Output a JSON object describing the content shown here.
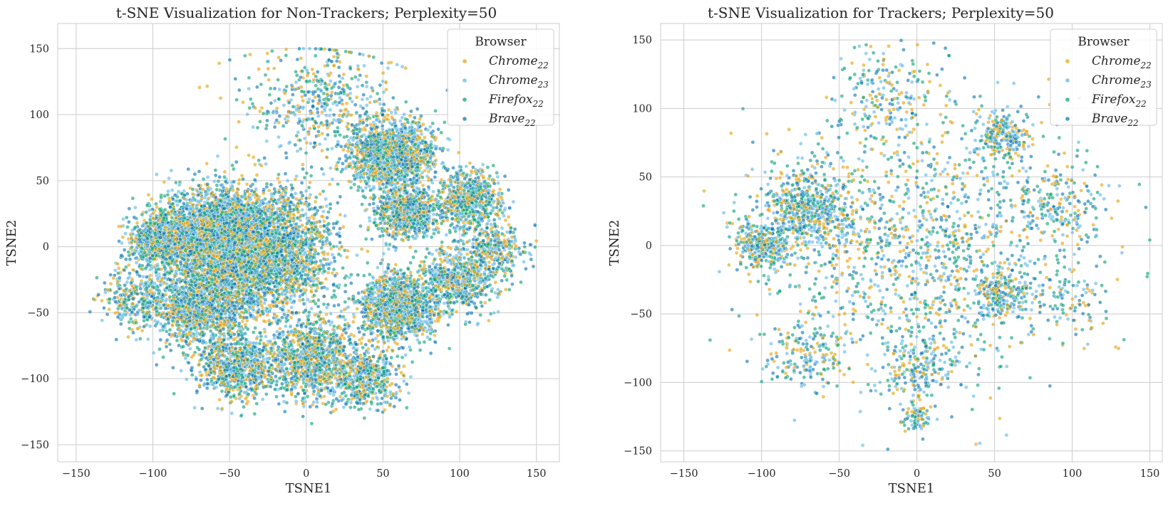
{
  "figure": {
    "colors": {
      "Chrome22": "#E69F00",
      "Chrome23": "#56B4E9",
      "Firefox22": "#009E73",
      "Brave22": "#0072B2"
    }
  },
  "chart_data": [
    {
      "type": "scatter",
      "title": "t-SNE Visualization for Non-Trackers; Perplexity=50",
      "xlabel": "TSNE1",
      "ylabel": "TSNE2",
      "xlim": [
        -162,
        165
      ],
      "ylim": [
        -163,
        169
      ],
      "xticks": [
        -150,
        -100,
        -50,
        0,
        50,
        100,
        150
      ],
      "yticks": [
        -150,
        -100,
        -50,
        0,
        50,
        100,
        150
      ],
      "xtick_labels": [
        "−150",
        "−100",
        "−50",
        "0",
        "50",
        "100",
        "150"
      ],
      "ytick_labels": [
        "−150",
        "−100",
        "−50",
        "0",
        "50",
        "100",
        "150"
      ],
      "grid": true,
      "legend": {
        "title": "Browser",
        "placement": "top-right",
        "entries": [
          {
            "base": "Chrome",
            "sub": "22",
            "series": "Chrome22"
          },
          {
            "base": "Chrome",
            "sub": "23",
            "series": "Chrome23"
          },
          {
            "base": "Firefox",
            "sub": "22",
            "series": "Firefox22"
          },
          {
            "base": "Brave",
            "sub": "22",
            "series": "Brave22"
          }
        ]
      },
      "series": [
        {
          "name": "Chrome22",
          "approx_points": 4000
        },
        {
          "name": "Chrome23",
          "approx_points": 4000
        },
        {
          "name": "Firefox22",
          "approx_points": 4000
        },
        {
          "name": "Brave22",
          "approx_points": 4000
        }
      ],
      "clusters": [
        {
          "x": -30,
          "y": -5,
          "spread": 38,
          "weight": 0.22
        },
        {
          "x": -60,
          "y": 10,
          "spread": 30,
          "weight": 0.12
        },
        {
          "x": -70,
          "y": -45,
          "spread": 25,
          "weight": 0.08
        },
        {
          "x": 55,
          "y": 70,
          "spread": 22,
          "weight": 0.09
        },
        {
          "x": 65,
          "y": 25,
          "spread": 15,
          "weight": 0.05
        },
        {
          "x": 60,
          "y": -45,
          "spread": 22,
          "weight": 0.08
        },
        {
          "x": 5,
          "y": -85,
          "spread": 25,
          "weight": 0.07
        },
        {
          "x": -45,
          "y": -90,
          "spread": 22,
          "weight": 0.05
        },
        {
          "x": -95,
          "y": 5,
          "spread": 18,
          "weight": 0.05
        },
        {
          "x": 105,
          "y": 35,
          "spread": 18,
          "weight": 0.04
        },
        {
          "x": 100,
          "y": -25,
          "spread": 20,
          "weight": 0.04
        },
        {
          "x": 40,
          "y": -100,
          "spread": 18,
          "weight": 0.03
        },
        {
          "x": 10,
          "y": 110,
          "spread": 40,
          "weight": 0.03
        },
        {
          "x": 120,
          "y": 0,
          "spread": 20,
          "weight": 0.02
        },
        {
          "x": -110,
          "y": -40,
          "spread": 20,
          "weight": 0.02
        }
      ]
    },
    {
      "type": "scatter",
      "title": "t-SNE Visualization for Trackers; Perplexity=50",
      "xlabel": "TSNE1",
      "ylabel": "TSNE2",
      "xlim": [
        -165,
        158
      ],
      "ylim": [
        -158,
        162
      ],
      "xticks": [
        -150,
        -100,
        -50,
        0,
        50,
        100,
        150
      ],
      "yticks": [
        -150,
        -100,
        -50,
        0,
        50,
        100,
        150
      ],
      "xtick_labels": [
        "−150",
        "−100",
        "−50",
        "0",
        "50",
        "100",
        "150"
      ],
      "ytick_labels": [
        "−150",
        "−100",
        "−50",
        "0",
        "50",
        "100",
        "150"
      ],
      "grid": true,
      "legend": {
        "title": "Browser",
        "placement": "top-right",
        "entries": [
          {
            "base": "Chrome",
            "sub": "22",
            "series": "Chrome22"
          },
          {
            "base": "Chrome",
            "sub": "23",
            "series": "Chrome23"
          },
          {
            "base": "Firefox",
            "sub": "22",
            "series": "Firefox22"
          },
          {
            "base": "Brave",
            "sub": "22",
            "series": "Brave22"
          }
        ]
      },
      "series": [
        {
          "name": "Chrome22",
          "approx_points": 900
        },
        {
          "name": "Chrome23",
          "approx_points": 900
        },
        {
          "name": "Firefox22",
          "approx_points": 900
        },
        {
          "name": "Brave22",
          "approx_points": 900
        }
      ],
      "clusters": [
        {
          "x": -70,
          "y": 25,
          "spread": 25,
          "weight": 0.16
        },
        {
          "x": -100,
          "y": 0,
          "spread": 15,
          "weight": 0.09
        },
        {
          "x": 55,
          "y": 80,
          "spread": 15,
          "weight": 0.06
        },
        {
          "x": 55,
          "y": -35,
          "spread": 15,
          "weight": 0.06
        },
        {
          "x": 0,
          "y": -90,
          "spread": 20,
          "weight": 0.05
        },
        {
          "x": 0,
          "y": -125,
          "spread": 8,
          "weight": 0.02
        },
        {
          "x": -70,
          "y": -80,
          "spread": 20,
          "weight": 0.05
        },
        {
          "x": 0,
          "y": 0,
          "spread": 85,
          "weight": 0.38
        },
        {
          "x": 90,
          "y": 30,
          "spread": 25,
          "weight": 0.05
        },
        {
          "x": -20,
          "y": 110,
          "spread": 30,
          "weight": 0.05
        },
        {
          "x": 100,
          "y": -40,
          "spread": 20,
          "weight": 0.03
        }
      ]
    }
  ]
}
